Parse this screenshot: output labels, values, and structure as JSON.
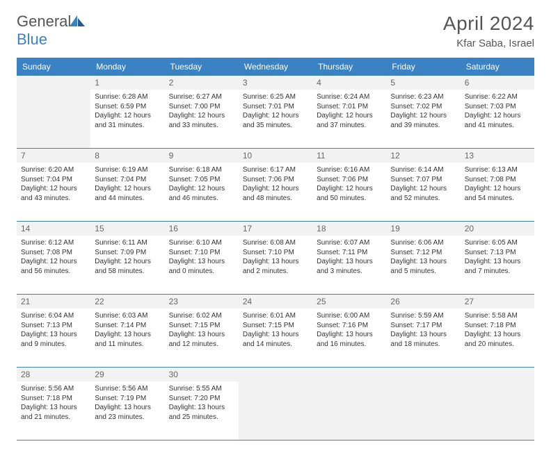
{
  "logo": {
    "part1": "General",
    "part2": "Blue"
  },
  "title": "April 2024",
  "location": "Kfar Saba, Israel",
  "colors": {
    "header": "#3b82c4",
    "border": "#3b82c4",
    "grey": "#f2f2f2",
    "text": "#333",
    "muted": "#666"
  },
  "dayNames": [
    "Sunday",
    "Monday",
    "Tuesday",
    "Wednesday",
    "Thursday",
    "Friday",
    "Saturday"
  ],
  "weeks": [
    [
      {
        "n": "",
        "sunrise": "",
        "sunset": "",
        "daylight": ""
      },
      {
        "n": "1",
        "sunrise": "6:28 AM",
        "sunset": "6:59 PM",
        "daylight": "12 hours and 31 minutes."
      },
      {
        "n": "2",
        "sunrise": "6:27 AM",
        "sunset": "7:00 PM",
        "daylight": "12 hours and 33 minutes."
      },
      {
        "n": "3",
        "sunrise": "6:25 AM",
        "sunset": "7:01 PM",
        "daylight": "12 hours and 35 minutes."
      },
      {
        "n": "4",
        "sunrise": "6:24 AM",
        "sunset": "7:01 PM",
        "daylight": "12 hours and 37 minutes."
      },
      {
        "n": "5",
        "sunrise": "6:23 AM",
        "sunset": "7:02 PM",
        "daylight": "12 hours and 39 minutes."
      },
      {
        "n": "6",
        "sunrise": "6:22 AM",
        "sunset": "7:03 PM",
        "daylight": "12 hours and 41 minutes."
      }
    ],
    [
      {
        "n": "7",
        "sunrise": "6:20 AM",
        "sunset": "7:04 PM",
        "daylight": "12 hours and 43 minutes."
      },
      {
        "n": "8",
        "sunrise": "6:19 AM",
        "sunset": "7:04 PM",
        "daylight": "12 hours and 44 minutes."
      },
      {
        "n": "9",
        "sunrise": "6:18 AM",
        "sunset": "7:05 PM",
        "daylight": "12 hours and 46 minutes."
      },
      {
        "n": "10",
        "sunrise": "6:17 AM",
        "sunset": "7:06 PM",
        "daylight": "12 hours and 48 minutes."
      },
      {
        "n": "11",
        "sunrise": "6:16 AM",
        "sunset": "7:06 PM",
        "daylight": "12 hours and 50 minutes."
      },
      {
        "n": "12",
        "sunrise": "6:14 AM",
        "sunset": "7:07 PM",
        "daylight": "12 hours and 52 minutes."
      },
      {
        "n": "13",
        "sunrise": "6:13 AM",
        "sunset": "7:08 PM",
        "daylight": "12 hours and 54 minutes."
      }
    ],
    [
      {
        "n": "14",
        "sunrise": "6:12 AM",
        "sunset": "7:08 PM",
        "daylight": "12 hours and 56 minutes."
      },
      {
        "n": "15",
        "sunrise": "6:11 AM",
        "sunset": "7:09 PM",
        "daylight": "12 hours and 58 minutes."
      },
      {
        "n": "16",
        "sunrise": "6:10 AM",
        "sunset": "7:10 PM",
        "daylight": "13 hours and 0 minutes."
      },
      {
        "n": "17",
        "sunrise": "6:08 AM",
        "sunset": "7:10 PM",
        "daylight": "13 hours and 2 minutes."
      },
      {
        "n": "18",
        "sunrise": "6:07 AM",
        "sunset": "7:11 PM",
        "daylight": "13 hours and 3 minutes."
      },
      {
        "n": "19",
        "sunrise": "6:06 AM",
        "sunset": "7:12 PM",
        "daylight": "13 hours and 5 minutes."
      },
      {
        "n": "20",
        "sunrise": "6:05 AM",
        "sunset": "7:13 PM",
        "daylight": "13 hours and 7 minutes."
      }
    ],
    [
      {
        "n": "21",
        "sunrise": "6:04 AM",
        "sunset": "7:13 PM",
        "daylight": "13 hours and 9 minutes."
      },
      {
        "n": "22",
        "sunrise": "6:03 AM",
        "sunset": "7:14 PM",
        "daylight": "13 hours and 11 minutes."
      },
      {
        "n": "23",
        "sunrise": "6:02 AM",
        "sunset": "7:15 PM",
        "daylight": "13 hours and 12 minutes."
      },
      {
        "n": "24",
        "sunrise": "6:01 AM",
        "sunset": "7:15 PM",
        "daylight": "13 hours and 14 minutes."
      },
      {
        "n": "25",
        "sunrise": "6:00 AM",
        "sunset": "7:16 PM",
        "daylight": "13 hours and 16 minutes."
      },
      {
        "n": "26",
        "sunrise": "5:59 AM",
        "sunset": "7:17 PM",
        "daylight": "13 hours and 18 minutes."
      },
      {
        "n": "27",
        "sunrise": "5:58 AM",
        "sunset": "7:18 PM",
        "daylight": "13 hours and 20 minutes."
      }
    ],
    [
      {
        "n": "28",
        "sunrise": "5:56 AM",
        "sunset": "7:18 PM",
        "daylight": "13 hours and 21 minutes."
      },
      {
        "n": "29",
        "sunrise": "5:56 AM",
        "sunset": "7:19 PM",
        "daylight": "13 hours and 23 minutes."
      },
      {
        "n": "30",
        "sunrise": "5:55 AM",
        "sunset": "7:20 PM",
        "daylight": "13 hours and 25 minutes."
      },
      {
        "n": "",
        "sunrise": "",
        "sunset": "",
        "daylight": ""
      },
      {
        "n": "",
        "sunrise": "",
        "sunset": "",
        "daylight": ""
      },
      {
        "n": "",
        "sunrise": "",
        "sunset": "",
        "daylight": ""
      },
      {
        "n": "",
        "sunrise": "",
        "sunset": "",
        "daylight": ""
      }
    ]
  ],
  "labels": {
    "sunrise": "Sunrise:",
    "sunset": "Sunset:",
    "daylight": "Daylight:"
  }
}
